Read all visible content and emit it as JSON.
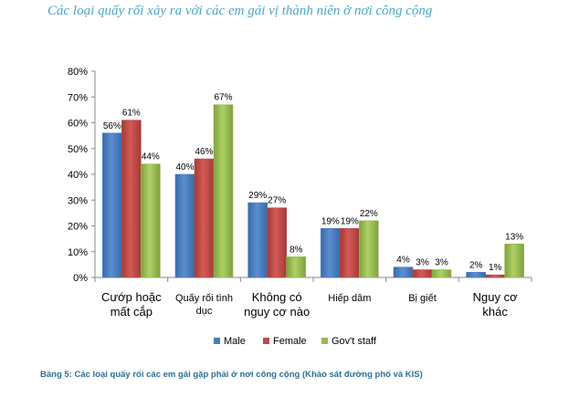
{
  "title": "Các loại quấy rối xảy ra với các em gái vị thành niên ở nơi công cộng",
  "caption": "Bảng 5: Các loại quấy rối các em gái gặp phải ở nơi công cộng (Khảo sát đường phố và KIS)",
  "colors": {
    "Male": "#4a7ebb",
    "Female": "#be4b48",
    "Gov't staff": "#98b954"
  },
  "chart_data": {
    "type": "bar",
    "title": "Các loại quấy rối xảy ra với các em gái vị thành niên ở nơi công cộng",
    "xlabel": "",
    "ylabel": "",
    "ylim": [
      0,
      80
    ],
    "yticks": [
      "0%",
      "10%",
      "20%",
      "30%",
      "40%",
      "50%",
      "60%",
      "70%",
      "80%"
    ],
    "grid": false,
    "legend": "bottom",
    "categories": [
      [
        "Cướp hoặc",
        "mất cắp"
      ],
      [
        "Quấy rối tình",
        "dục"
      ],
      [
        "Không có",
        "nguy cơ nào"
      ],
      [
        "Hiếp dâm"
      ],
      [
        "Bị giết"
      ],
      [
        "Nguy cơ",
        "khác"
      ]
    ],
    "series": [
      {
        "name": "Male",
        "values": [
          56,
          40,
          29,
          19,
          4,
          2
        ],
        "labels": [
          "56%",
          "40%",
          "29%",
          "19%",
          "4%",
          "2%"
        ]
      },
      {
        "name": "Female",
        "values": [
          61,
          46,
          27,
          19,
          3,
          1
        ],
        "labels": [
          "61%",
          "46%",
          "27%",
          "19%",
          "3%",
          "1%"
        ]
      },
      {
        "name": "Gov't staff",
        "values": [
          44,
          67,
          8,
          22,
          3,
          13
        ],
        "labels": [
          "44%",
          "67%",
          "8%",
          "22%",
          "3%",
          "13%"
        ]
      }
    ]
  }
}
